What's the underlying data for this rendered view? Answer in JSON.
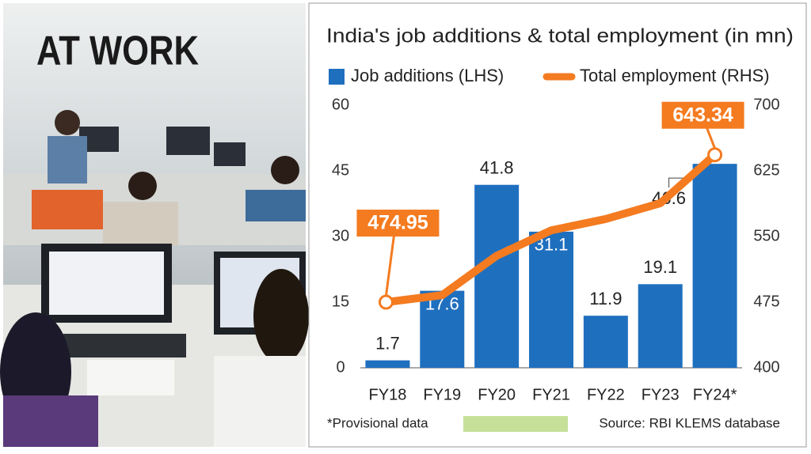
{
  "image": {
    "label": "AT WORK"
  },
  "chart_data": {
    "type": "bar",
    "title": "India's job additions & total employment (in mn)",
    "categories": [
      "FY18",
      "FY19",
      "FY20",
      "FY21",
      "FY22",
      "FY23",
      "FY24*"
    ],
    "series": [
      {
        "name": "Job additions (LHS)",
        "color": "#1f6fbf",
        "values": [
          1.7,
          17.6,
          41.8,
          31.1,
          11.9,
          19.1,
          46.6
        ]
      },
      {
        "name": "Total employment (RHS)",
        "color": "#f47b20",
        "type": "line",
        "axis": "y2",
        "values": [
          474.95,
          483,
          528,
          557,
          570,
          588,
          643.34
        ],
        "value_labels": [
          "474.95",
          null,
          null,
          null,
          null,
          null,
          "643.34"
        ]
      }
    ],
    "ylim": [
      0,
      60
    ],
    "yticks": [
      0,
      15,
      30,
      45,
      60
    ],
    "y2lim": [
      400,
      700
    ],
    "y2ticks": [
      400,
      475,
      550,
      625,
      700
    ],
    "footnote": "*Provisional data",
    "source": "Source: RBI KLEMS database"
  }
}
